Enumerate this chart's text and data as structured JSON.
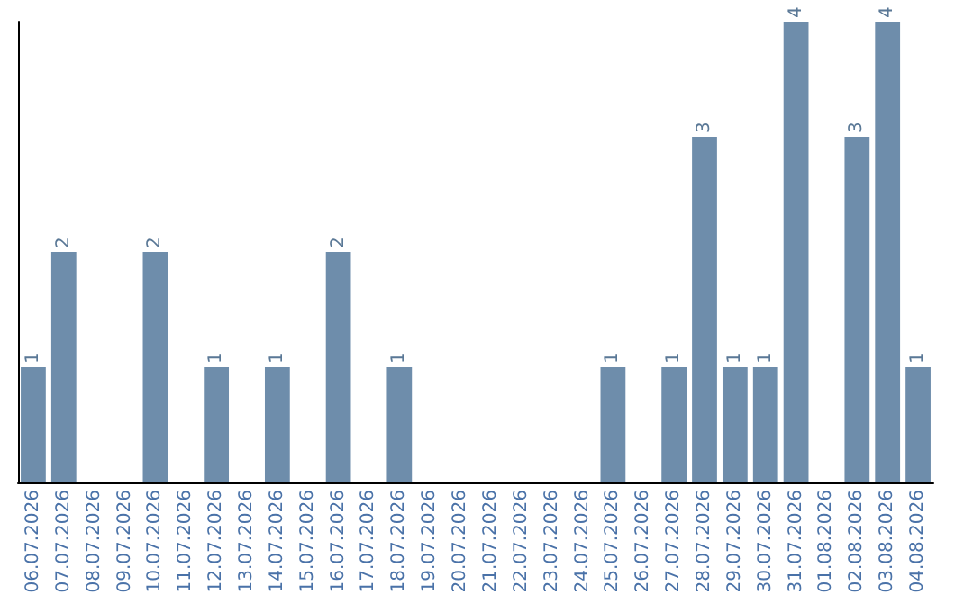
{
  "chart_data": {
    "type": "bar",
    "categories": [
      "06.07.2026",
      "07.07.2026",
      "08.07.2026",
      "09.07.2026",
      "10.07.2026",
      "11.07.2026",
      "12.07.2026",
      "13.07.2026",
      "14.07.2026",
      "15.07.2026",
      "16.07.2026",
      "17.07.2026",
      "18.07.2026",
      "19.07.2026",
      "20.07.2026",
      "21.07.2026",
      "22.07.2026",
      "23.07.2026",
      "24.07.2026",
      "25.07.2026",
      "26.07.2026",
      "27.07.2026",
      "28.07.2026",
      "29.07.2026",
      "30.07.2026",
      "31.07.2026",
      "01.08.2026",
      "02.08.2026",
      "03.08.2026",
      "04.08.2026"
    ],
    "values": [
      1,
      2,
      0,
      0,
      2,
      0,
      1,
      0,
      1,
      0,
      2,
      0,
      1,
      0,
      0,
      0,
      0,
      0,
      0,
      1,
      0,
      1,
      3,
      1,
      1,
      4,
      0,
      3,
      4,
      1
    ],
    "value_labels": [
      "1",
      "2",
      null,
      null,
      "2",
      null,
      "1",
      null,
      "1",
      null,
      "2",
      null,
      "1",
      null,
      null,
      null,
      null,
      null,
      null,
      "1",
      null,
      "1",
      "3",
      "1",
      "1",
      "4",
      null,
      "3",
      "4",
      "1"
    ],
    "color": "#6e8dab"
  }
}
